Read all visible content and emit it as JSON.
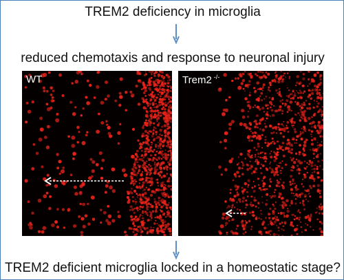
{
  "title": "TREM2 deficiency in microglia",
  "step2": "reduced chemotaxis and response to neuronal injury",
  "step3": "TREM2 deficient microglia locked in a homeostatic stage?",
  "panels": {
    "wt": {
      "label": "WT"
    },
    "ko": {
      "label": "Trem2",
      "label_sup": "-/-"
    }
  },
  "colors": {
    "frame": "#4a7fb5",
    "flow_arrow": "#5b8ec7",
    "cell": "#e8231a",
    "panel_bg": "#050000",
    "migration_arrow": "#ffffff"
  },
  "icons": {
    "flow_arrow": "down-arrow-icon",
    "migration_arrow": "dashed-left-arrow-icon"
  }
}
